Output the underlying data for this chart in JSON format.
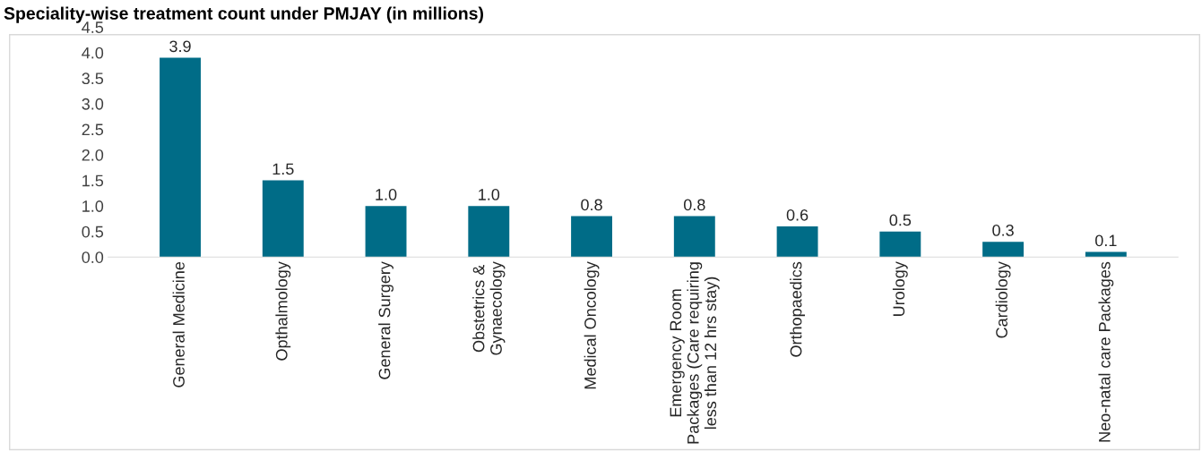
{
  "chart_data": {
    "type": "bar",
    "title": "Speciality-wise treatment count under PMJAY (in millions)",
    "categories": [
      "General Medicine",
      "Opthalmology",
      "General Surgery",
      "Obstetrics & Gynaecology",
      "Medical Oncology",
      "Emergency Room Packages (Care requiring less than 12 hrs stay)",
      "Orthopaedics",
      "Urology",
      "Cardiology",
      "Neo-natal care Packages"
    ],
    "values": [
      3.9,
      1.5,
      1.0,
      1.0,
      0.8,
      0.8,
      0.6,
      0.5,
      0.3,
      0.1
    ],
    "value_labels": [
      "3.9",
      "1.5",
      "1.0",
      "1.0",
      "0.8",
      "0.8",
      "0.6",
      "0.5",
      "0.3",
      "0.1"
    ],
    "color": "#006c87",
    "ylim": [
      0,
      4.5
    ],
    "yticks": [
      {
        "value": 0,
        "label": "0.0"
      },
      {
        "value": 0.5,
        "label": "0.5"
      },
      {
        "value": 1,
        "label": "1.0"
      },
      {
        "value": 1.5,
        "label": "1.5"
      },
      {
        "value": 2,
        "label": "2.0"
      },
      {
        "value": 2.5,
        "label": "2.5"
      },
      {
        "value": 3,
        "label": "3.0"
      },
      {
        "value": 3.5,
        "label": "3.5"
      },
      {
        "value": 4,
        "label": "4.0"
      },
      {
        "value": 4.5,
        "label": "4.5"
      }
    ],
    "grid": false
  }
}
